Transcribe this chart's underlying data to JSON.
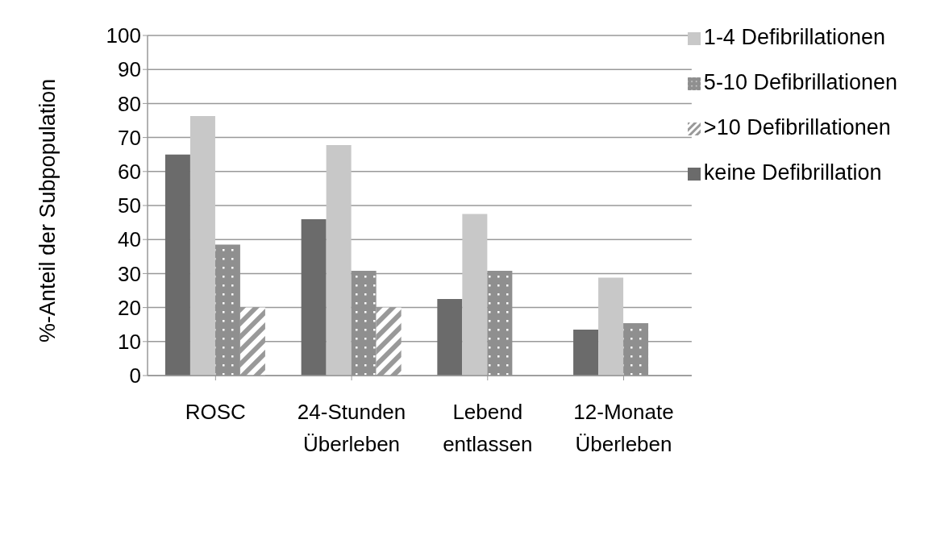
{
  "chart_data": {
    "type": "bar",
    "ylabel": "%-Anteil der Subpopulation",
    "categories": [
      "ROSC",
      "24-Stunden Überleben",
      "Lebend entlassen",
      "12-Monate Überleben"
    ],
    "series": [
      {
        "name": "keine Defibrillation",
        "color": "#6b6b6b",
        "values": [
          65,
          46,
          22.5,
          13.5
        ]
      },
      {
        "name": "1-4 Defibrillationen",
        "color": "#c8c8c8",
        "values": [
          76.3,
          67.8,
          47.5,
          28.8
        ]
      },
      {
        "name": "5-10 Defibrillationen",
        "color": "#8f8f8f",
        "values": [
          38.5,
          30.8,
          30.8,
          15.4
        ]
      },
      {
        "name": ">10 Defibrillationen",
        "color": "#999999",
        "values": [
          20,
          20,
          null,
          null
        ]
      }
    ],
    "ylim": [
      0,
      100
    ],
    "yticks": [
      0,
      10,
      20,
      30,
      40,
      50,
      60,
      70,
      80,
      90,
      100
    ],
    "grid": "y",
    "legend": "top right"
  }
}
